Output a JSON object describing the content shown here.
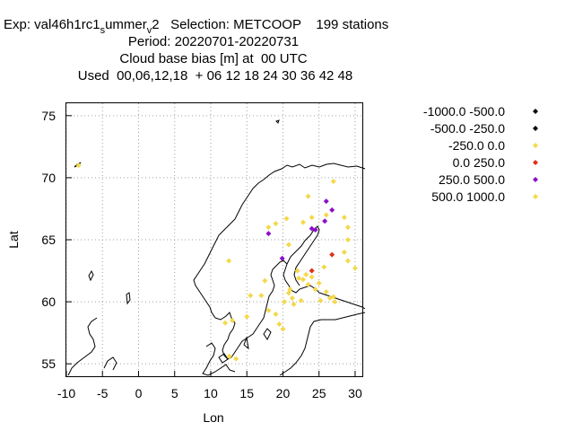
{
  "title": {
    "line1_prefix": "Exp: val46h1rc1",
    "line1_sub1": "s",
    "line1_mid": "ummer",
    "line1_sub2": "v",
    "line1_suffix": "2   Selection: METCOOP    199 stations",
    "line2": "Period: 20220701-20220731",
    "line3": "Cloud base bias [m] at  00 UTC",
    "line4": "Used  00,06,12,18  + 06 12 18 24 30 36 42 48"
  },
  "chart_data": {
    "type": "scatter",
    "xlabel": "Lon",
    "ylabel": "Lat",
    "xlim": [
      -10,
      31
    ],
    "ylim": [
      54,
      76
    ],
    "xticks": [
      "-10",
      "-5",
      "0",
      "5",
      "10",
      "15",
      "20",
      "25",
      "30"
    ],
    "yticks": [
      "55",
      "60",
      "65",
      "70",
      "75"
    ],
    "grid": true,
    "legend_position": "right",
    "background_map": "coastlines",
    "legend": [
      {
        "label": "-1000.0 -500.0",
        "color": "#000000"
      },
      {
        "label": "-500.0 -250.0",
        "color": "#000000"
      },
      {
        "label": "-250.0 0.0",
        "color": "#f5d84a"
      },
      {
        "label": "0.0 250.0",
        "color": "#e03018"
      },
      {
        "label": "250.0 500.0",
        "color": "#8a10c8"
      },
      {
        "label": "500.0 1000.0",
        "color": "#f5d84a"
      }
    ],
    "series": [
      {
        "class": 2,
        "points": [
          [
            -8.3,
            71.0
          ],
          [
            12.5,
            63.3
          ],
          [
            18.0,
            66.0
          ],
          [
            19.0,
            66.3
          ],
          [
            20.5,
            66.7
          ],
          [
            22.8,
            66.4
          ],
          [
            23.5,
            68.5
          ],
          [
            24.0,
            66.8
          ],
          [
            26.0,
            67.0
          ],
          [
            27.0,
            69.7
          ],
          [
            28.5,
            66.8
          ],
          [
            29.0,
            66.0
          ],
          [
            29.0,
            65.0
          ],
          [
            28.5,
            64.0
          ],
          [
            30.0,
            62.7
          ],
          [
            29.0,
            63.3
          ],
          [
            17.5,
            61.7
          ],
          [
            15.5,
            60.5
          ],
          [
            17.0,
            60.5
          ],
          [
            18.0,
            59.3
          ],
          [
            19.0,
            59.0
          ],
          [
            19.5,
            58.2
          ],
          [
            20.0,
            57.8
          ],
          [
            13.0,
            58.5
          ],
          [
            12.0,
            58.3
          ],
          [
            15.0,
            58.8
          ],
          [
            21.0,
            61.0
          ],
          [
            20.8,
            60.7
          ],
          [
            21.3,
            60.3
          ],
          [
            21.5,
            59.8
          ],
          [
            22.0,
            62.5
          ],
          [
            22.2,
            61.9
          ],
          [
            22.8,
            61.8
          ],
          [
            23.2,
            62.2
          ],
          [
            23.5,
            61.4
          ],
          [
            24.0,
            62.0
          ],
          [
            24.5,
            61.0
          ],
          [
            25.0,
            61.5
          ],
          [
            25.7,
            62.8
          ],
          [
            26.5,
            60.3
          ],
          [
            27.0,
            60.4
          ],
          [
            26.0,
            60.8
          ],
          [
            25.2,
            60.1
          ],
          [
            22.5,
            60.1
          ],
          [
            20.2,
            60.0
          ],
          [
            13.5,
            55.4
          ],
          [
            12.6,
            55.6
          ],
          [
            20.8,
            64.6
          ],
          [
            27.2,
            60.0
          ]
        ]
      },
      {
        "class": 3,
        "points": [
          [
            26.8,
            63.8
          ],
          [
            24.0,
            62.5
          ]
        ]
      },
      {
        "class": 4,
        "points": [
          [
            18.0,
            65.5
          ],
          [
            19.9,
            63.5
          ],
          [
            24.0,
            65.9
          ],
          [
            24.5,
            65.8
          ],
          [
            25.8,
            66.5
          ],
          [
            26.0,
            68.1
          ],
          [
            26.8,
            67.4
          ]
        ]
      }
    ]
  }
}
